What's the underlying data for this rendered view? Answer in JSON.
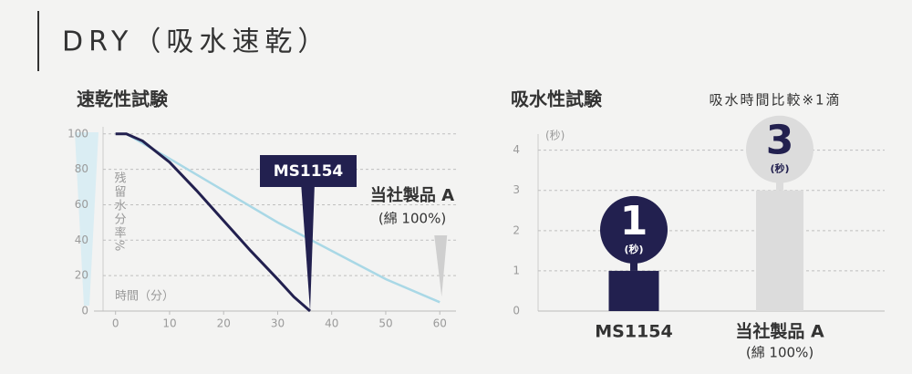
{
  "header": {
    "title": "DRY（吸水速乾）"
  },
  "chart_data": [
    {
      "type": "line",
      "title": "速乾性試験",
      "y_label": "残留水分率%",
      "x_label": "時間（分）",
      "xlim": [
        -4,
        63
      ],
      "xticks": [
        0,
        10,
        20,
        30,
        40,
        50,
        60
      ],
      "ylim": [
        0,
        104
      ],
      "yticks": [
        0,
        20,
        40,
        60,
        80,
        100
      ],
      "grid": true,
      "series": [
        {
          "name": "MS1154",
          "color": "#22204f",
          "x": [
            0,
            2,
            5,
            10,
            15,
            20,
            25,
            30,
            33,
            36
          ],
          "values": [
            100,
            100,
            96,
            84,
            68,
            51,
            34,
            18,
            8,
            0
          ]
        },
        {
          "name": "当社製品 A",
          "name_note": "(綿 100%)",
          "color": "#a9d8e6",
          "x": [
            0,
            2,
            10,
            20,
            30,
            40,
            50,
            60
          ],
          "values": [
            100,
            100,
            86,
            68,
            50,
            34,
            18,
            5
          ]
        }
      ]
    },
    {
      "type": "bar",
      "title": "吸水性試験",
      "subtitle": "吸水時間比較※1滴",
      "y_unit": "(秒)",
      "categories": [
        "MS1154",
        "当社製品 A"
      ],
      "category_notes": [
        null,
        "(綿 100%)"
      ],
      "values": [
        1,
        3
      ],
      "value_unit": "(秒)",
      "colors": [
        "#22204f",
        "#dcdcdc"
      ],
      "ylim": [
        0,
        4.4
      ],
      "yticks": [
        0,
        1,
        2,
        3,
        4
      ],
      "grid": true
    }
  ]
}
